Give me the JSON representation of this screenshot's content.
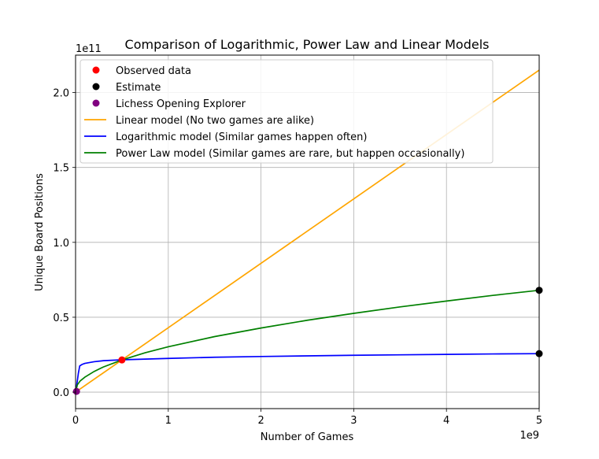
{
  "chart_data": {
    "type": "line",
    "title": "Comparison of Logarithmic, Power Law and Linear Models",
    "xlabel": "Number of Games",
    "ylabel": "Unique Board Positions",
    "x_offset_label": "1e9",
    "y_offset_label": "1e11",
    "xlim": [
      0,
      5000000000
    ],
    "ylim": [
      -11000000000,
      225000000000
    ],
    "x_ticks": [
      0,
      1000000000,
      2000000000,
      3000000000,
      4000000000,
      5000000000
    ],
    "x_tick_labels": [
      "0",
      "1",
      "2",
      "3",
      "4",
      "5"
    ],
    "y_ticks": [
      0,
      50000000000,
      100000000000,
      150000000000,
      200000000000
    ],
    "y_tick_labels": [
      "0.0",
      "0.5",
      "1.0",
      "1.5",
      "2.0"
    ],
    "grid": true,
    "legend_position": "top-left",
    "series": [
      {
        "name": "Linear model (No two games are alike)",
        "kind": "line",
        "color": "#ffa500",
        "x": [
          0,
          5000000000
        ],
        "y": [
          0,
          215000000000
        ]
      },
      {
        "name": "Logarithmic model (Similar games happen often)",
        "kind": "line",
        "color": "#0000ff",
        "x": [
          0,
          5000000,
          10000000,
          20000000,
          30000000,
          45000000,
          70000000,
          100000000,
          200000000,
          300000000,
          500000000,
          1000000000,
          1500000000,
          2000000000,
          2500000000,
          3000000000,
          3500000000,
          4000000000,
          4500000000,
          5000000000
        ],
        "y": [
          0,
          1500000000,
          3500000000,
          8000000000,
          12500000000,
          17500000000,
          18500000000,
          19200000000,
          20300000000,
          21000000000,
          21600000000,
          22500000000,
          23300000000,
          23800000000,
          24200000000,
          24600000000,
          24900000000,
          25200000000,
          25500000000,
          25700000000
        ]
      },
      {
        "name": "Power Law model (Similar games are rare, but happen occasionally)",
        "kind": "line",
        "color": "#008000",
        "x": [
          0,
          20000000,
          50000000,
          100000000,
          200000000,
          300000000,
          500000000,
          750000000,
          1000000000,
          1500000000,
          2000000000,
          2500000000,
          3000000000,
          3500000000,
          4000000000,
          4500000000,
          5000000000
        ],
        "y": [
          0,
          5000000000,
          7500000000,
          10000000000,
          13800000000,
          16800000000,
          21500000000,
          26300000000,
          30300000000,
          37100000000,
          42800000000,
          48000000000,
          52600000000,
          56900000000,
          60800000000,
          64600000000,
          68000000000
        ]
      },
      {
        "name": "Observed data",
        "kind": "scatter",
        "color": "#ff0000",
        "x": [
          500000000
        ],
        "y": [
          21500000000
        ]
      },
      {
        "name": "Estimate",
        "kind": "scatter",
        "color": "#000000",
        "x": [
          5000000000,
          5000000000
        ],
        "y": [
          68000000000,
          25700000000
        ]
      },
      {
        "name": "Lichess Opening Explorer",
        "kind": "scatter",
        "color": "#800080",
        "x": [
          10000000
        ],
        "y": [
          500000000
        ]
      }
    ],
    "legend_order": [
      "Observed data",
      "Estimate",
      "Lichess Opening Explorer",
      "Linear model (No two games are alike)",
      "Logarithmic model (Similar games happen often)",
      "Power Law model (Similar games are rare, but happen occasionally)"
    ]
  }
}
